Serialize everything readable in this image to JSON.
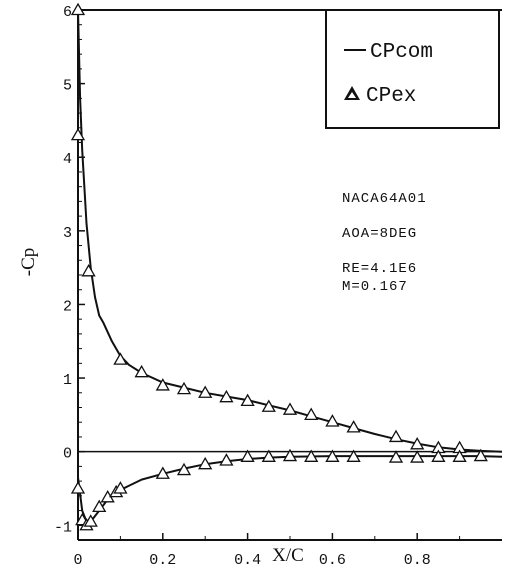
{
  "chart_data": {
    "type": "line",
    "xlabel": "X/C",
    "ylabel": "-Cp",
    "xlim": [
      0,
      1.0
    ],
    "ylim": [
      -1.2,
      6
    ],
    "x_ticks": [
      {
        "value": 0,
        "label": "0"
      },
      {
        "value": 0.2,
        "label": "0.2"
      },
      {
        "value": 0.4,
        "label": "0.4"
      },
      {
        "value": 0.6,
        "label": "0.6"
      },
      {
        "value": 0.8,
        "label": "0.8"
      }
    ],
    "y_ticks": [
      {
        "value": 6,
        "label": "6"
      },
      {
        "value": 5,
        "label": "5"
      },
      {
        "value": 4,
        "label": "4"
      },
      {
        "value": 3,
        "label": "3"
      },
      {
        "value": 2,
        "label": "2"
      },
      {
        "value": 1,
        "label": "1"
      },
      {
        "value": 0,
        "label": "0"
      },
      {
        "value": -1,
        "label": "-1"
      }
    ],
    "grid": false,
    "legend_position": "top-right",
    "series": [
      {
        "name": "CPcom",
        "style": "line",
        "curves": [
          {
            "part": "upper",
            "x": [
              0.0,
              0.005,
              0.01,
              0.02,
              0.03,
              0.04,
              0.05,
              0.06,
              0.08,
              0.1,
              0.12,
              0.15,
              0.2,
              0.25,
              0.3,
              0.35,
              0.4,
              0.45,
              0.5,
              0.55,
              0.6,
              0.65,
              0.7,
              0.75,
              0.8,
              0.85,
              0.9,
              0.95,
              1.0
            ],
            "y": [
              6.0,
              4.8,
              4.1,
              3.1,
              2.5,
              2.1,
              1.85,
              1.75,
              1.5,
              1.3,
              1.18,
              1.07,
              0.94,
              0.87,
              0.8,
              0.75,
              0.7,
              0.63,
              0.56,
              0.48,
              0.4,
              0.32,
              0.24,
              0.17,
              0.11,
              0.06,
              0.03,
              0.01,
              0.0
            ]
          },
          {
            "part": "lower",
            "x": [
              0.0,
              0.01,
              0.02,
              0.03,
              0.05,
              0.07,
              0.1,
              0.15,
              0.2,
              0.25,
              0.3,
              0.35,
              0.4,
              0.45,
              0.5,
              0.6,
              0.7,
              0.8,
              0.9,
              0.95,
              1.0
            ],
            "y": [
              -0.35,
              -0.8,
              -0.95,
              -0.95,
              -0.8,
              -0.65,
              -0.52,
              -0.38,
              -0.3,
              -0.23,
              -0.17,
              -0.13,
              -0.1,
              -0.08,
              -0.07,
              -0.06,
              -0.06,
              -0.06,
              -0.06,
              -0.06,
              -0.07
            ]
          }
        ]
      },
      {
        "name": "CPex",
        "style": "triangle-markers",
        "x": [
          0.0,
          0.0,
          0.025,
          0.1,
          0.15,
          0.2,
          0.25,
          0.3,
          0.35,
          0.4,
          0.45,
          0.5,
          0.55,
          0.6,
          0.65,
          0.75,
          0.8,
          0.85,
          0.9,
          0.0,
          0.01,
          0.02,
          0.03,
          0.05,
          0.07,
          0.09,
          0.1,
          0.2,
          0.25,
          0.3,
          0.35,
          0.4,
          0.45,
          0.5,
          0.55,
          0.6,
          0.65,
          0.75,
          0.8,
          0.85,
          0.9,
          0.95
        ],
        "y": [
          6.0,
          4.3,
          2.45,
          1.25,
          1.08,
          0.9,
          0.85,
          0.8,
          0.74,
          0.69,
          0.61,
          0.57,
          0.5,
          0.41,
          0.33,
          0.2,
          0.1,
          0.05,
          0.05,
          -0.5,
          -0.93,
          -1.0,
          -0.95,
          -0.75,
          -0.62,
          -0.55,
          -0.5,
          -0.3,
          -0.25,
          -0.17,
          -0.12,
          -0.07,
          -0.07,
          -0.06,
          -0.07,
          -0.07,
          -0.07,
          -0.08,
          -0.08,
          -0.07,
          -0.07,
          -0.06
        ]
      }
    ],
    "annotations": [
      "NACA64A01",
      "AOA=8DEG",
      "RE=4.1E6",
      "M=0.167"
    ]
  }
}
